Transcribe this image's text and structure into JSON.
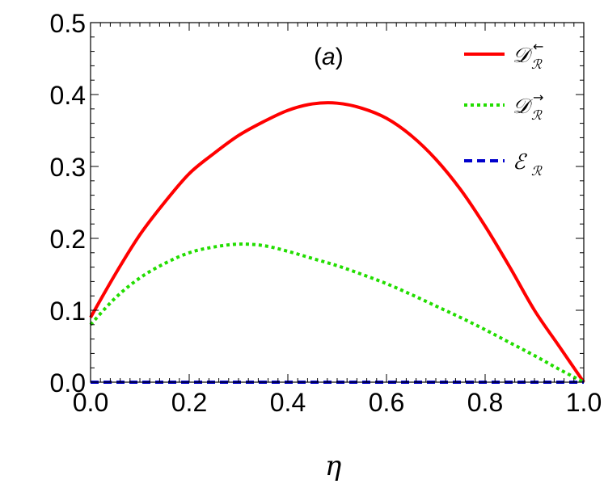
{
  "chart_data": {
    "type": "line",
    "panel_label": "(a)",
    "xlabel": "η",
    "ylabel": "",
    "xlim": [
      0.0,
      1.0
    ],
    "ylim": [
      0.0,
      0.5
    ],
    "x_ticks": [
      "0.0",
      "0.2",
      "0.4",
      "0.6",
      "0.8",
      "1.0"
    ],
    "y_ticks": [
      "0.0",
      "0.1",
      "0.2",
      "0.3",
      "0.4",
      "0.5"
    ],
    "legend_position": "top-right",
    "grid": false,
    "x": [
      0.0,
      0.05,
      0.1,
      0.15,
      0.2,
      0.25,
      0.3,
      0.35,
      0.4,
      0.45,
      0.5,
      0.55,
      0.6,
      0.65,
      0.7,
      0.75,
      0.8,
      0.85,
      0.9,
      0.95,
      1.0
    ],
    "series": [
      {
        "name": "𝒟ℛ←",
        "legend_main": "𝒟",
        "legend_sub": "ℛ",
        "legend_arrow": "←",
        "color": "#ff0000",
        "style": "solid",
        "values": [
          0.09,
          0.15,
          0.205,
          0.25,
          0.29,
          0.318,
          0.343,
          0.362,
          0.378,
          0.387,
          0.388,
          0.381,
          0.367,
          0.343,
          0.31,
          0.268,
          0.217,
          0.16,
          0.1,
          0.05,
          0.0
        ]
      },
      {
        "name": "𝒟ℛ→",
        "legend_main": "𝒟",
        "legend_sub": "ℛ",
        "legend_arrow": "→",
        "color": "#22dd00",
        "style": "dotted",
        "values": [
          0.08,
          0.117,
          0.145,
          0.165,
          0.18,
          0.188,
          0.192,
          0.19,
          0.182,
          0.172,
          0.162,
          0.15,
          0.137,
          0.122,
          0.106,
          0.09,
          0.073,
          0.055,
          0.037,
          0.018,
          0.0
        ]
      },
      {
        "name": "ℰℛ",
        "legend_main": "ℰ",
        "legend_sub": "ℛ",
        "legend_arrow": "",
        "color": "#0000cc",
        "style": "dashed",
        "values": [
          0.0,
          0.0,
          0.0,
          0.0,
          0.0,
          0.0,
          0.0,
          0.0,
          0.0,
          0.0,
          0.0,
          0.0,
          0.0,
          0.0,
          0.0,
          0.0,
          0.0,
          0.0,
          0.0,
          0.0,
          0.0
        ]
      }
    ]
  }
}
